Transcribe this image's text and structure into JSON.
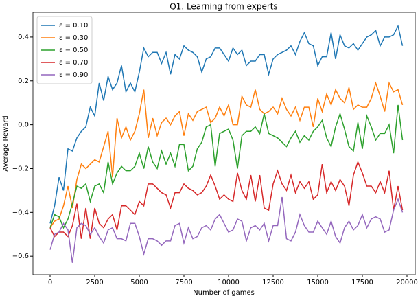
{
  "chart_data": {
    "type": "line",
    "title": "Q1. Learning from experts",
    "xlabel": "Number of games",
    "ylabel": "Average Reward",
    "x": [
      0,
      250,
      500,
      750,
      1000,
      1250,
      1500,
      1750,
      2000,
      2250,
      2500,
      2750,
      3000,
      3250,
      3500,
      3750,
      4000,
      4250,
      4500,
      4750,
      5000,
      5250,
      5500,
      5750,
      6000,
      6250,
      6500,
      6750,
      7000,
      7250,
      7500,
      7750,
      8000,
      8250,
      8500,
      8750,
      9000,
      9250,
      9500,
      9750,
      10000,
      10250,
      10500,
      10750,
      11000,
      11250,
      11500,
      11750,
      12000,
      12250,
      12500,
      12750,
      13000,
      13250,
      13500,
      13750,
      14000,
      14250,
      14500,
      14750,
      15000,
      15250,
      15500,
      15750,
      16000,
      16250,
      16500,
      16750,
      17000,
      17250,
      17500,
      17750,
      18000,
      18250,
      18500,
      18750,
      19000,
      19250,
      19500,
      19750
    ],
    "series": [
      {
        "name": "ε = 0.10",
        "color": "#1f77b4",
        "values": [
          -0.45,
          -0.37,
          -0.24,
          -0.3,
          -0.11,
          -0.12,
          -0.06,
          -0.03,
          -0.01,
          0.08,
          0.04,
          0.19,
          0.11,
          0.22,
          0.16,
          0.19,
          0.27,
          0.15,
          0.19,
          0.15,
          0.24,
          0.35,
          0.31,
          0.33,
          0.33,
          0.28,
          0.33,
          0.23,
          0.32,
          0.3,
          0.36,
          0.34,
          0.33,
          0.31,
          0.24,
          0.3,
          0.31,
          0.35,
          0.35,
          0.32,
          0.29,
          0.35,
          0.32,
          0.34,
          0.27,
          0.29,
          0.29,
          0.32,
          0.32,
          0.23,
          0.3,
          0.32,
          0.33,
          0.34,
          0.36,
          0.32,
          0.38,
          0.42,
          0.37,
          0.36,
          0.27,
          0.31,
          0.31,
          0.42,
          0.3,
          0.41,
          0.36,
          0.35,
          0.37,
          0.34,
          0.37,
          0.4,
          0.41,
          0.43,
          0.36,
          0.4,
          0.4,
          0.41,
          0.45,
          0.36
        ]
      },
      {
        "name": "ε = 0.30",
        "color": "#ff7f0e",
        "values": [
          -0.47,
          -0.44,
          -0.43,
          -0.37,
          -0.28,
          -0.38,
          -0.25,
          -0.18,
          -0.2,
          -0.18,
          -0.16,
          -0.17,
          -0.1,
          -0.03,
          -0.24,
          0.03,
          -0.06,
          -0.01,
          -0.07,
          -0.03,
          0.05,
          0.16,
          -0.06,
          0.03,
          -0.05,
          0.01,
          0.03,
          0.0,
          0.04,
          0.06,
          -0.05,
          0.05,
          0.02,
          0.06,
          0.07,
          0.08,
          0.01,
          0.03,
          0.08,
          0.04,
          0.09,
          0.0,
          0.0,
          0.13,
          0.09,
          0.08,
          0.16,
          0.07,
          0.05,
          0.06,
          0.08,
          0.05,
          0.12,
          0.07,
          0.04,
          0.08,
          0.02,
          0.08,
          0.08,
          -0.01,
          0.12,
          0.06,
          0.14,
          0.09,
          0.16,
          0.12,
          0.1,
          0.17,
          0.07,
          0.09,
          0.08,
          0.08,
          0.12,
          0.19,
          0.13,
          0.06,
          0.19,
          0.15,
          0.16,
          0.09
        ]
      },
      {
        "name": "ε = 0.50",
        "color": "#2ca02c",
        "values": [
          -0.47,
          -0.41,
          -0.42,
          -0.47,
          -0.43,
          -0.36,
          -0.28,
          -0.29,
          -0.27,
          -0.35,
          -0.28,
          -0.27,
          -0.31,
          -0.17,
          -0.27,
          -0.22,
          -0.19,
          -0.21,
          -0.21,
          -0.19,
          -0.13,
          -0.2,
          -0.1,
          -0.17,
          -0.2,
          -0.12,
          -0.18,
          -0.13,
          -0.19,
          -0.09,
          -0.09,
          -0.21,
          -0.19,
          -0.11,
          -0.08,
          -0.01,
          0.0,
          -0.19,
          -0.04,
          -0.03,
          -0.02,
          -0.07,
          -0.2,
          -0.05,
          -0.03,
          -0.03,
          -0.01,
          -0.04,
          0.05,
          -0.04,
          -0.05,
          -0.06,
          -0.08,
          -0.1,
          -0.06,
          -0.03,
          -0.08,
          -0.05,
          -0.07,
          -0.03,
          -0.01,
          0.02,
          -0.06,
          -0.1,
          -0.01,
          0.05,
          -0.02,
          -0.1,
          -0.12,
          0.01,
          -0.11,
          0.04,
          -0.01,
          -0.07,
          -0.04,
          -0.04,
          0.0,
          -0.13,
          0.09,
          -0.07
        ]
      },
      {
        "name": "ε = 0.70",
        "color": "#d62728",
        "values": [
          -0.47,
          -0.51,
          -0.49,
          -0.49,
          -0.51,
          -0.46,
          -0.36,
          -0.52,
          -0.38,
          -0.52,
          -0.38,
          -0.45,
          -0.47,
          -0.43,
          -0.41,
          -0.48,
          -0.37,
          -0.37,
          -0.39,
          -0.41,
          -0.35,
          -0.37,
          -0.27,
          -0.27,
          -0.29,
          -0.31,
          -0.32,
          -0.38,
          -0.31,
          -0.31,
          -0.27,
          -0.29,
          -0.3,
          -0.32,
          -0.31,
          -0.28,
          -0.23,
          -0.28,
          -0.34,
          -0.32,
          -0.34,
          -0.35,
          -0.22,
          -0.3,
          -0.34,
          -0.23,
          -0.35,
          -0.23,
          -0.38,
          -0.39,
          -0.27,
          -0.21,
          -0.27,
          -0.3,
          -0.23,
          -0.31,
          -0.26,
          -0.29,
          -0.26,
          -0.34,
          -0.32,
          -0.18,
          -0.31,
          -0.26,
          -0.3,
          -0.25,
          -0.28,
          -0.37,
          -0.23,
          -0.17,
          -0.22,
          -0.28,
          -0.28,
          -0.31,
          -0.26,
          -0.31,
          -0.21,
          -0.39,
          -0.28,
          -0.39
        ]
      },
      {
        "name": "ε = 0.90",
        "color": "#9467bd",
        "values": [
          -0.57,
          -0.5,
          -0.49,
          -0.45,
          -0.48,
          -0.63,
          -0.47,
          -0.45,
          -0.46,
          -0.5,
          -0.47,
          -0.51,
          -0.54,
          -0.48,
          -0.47,
          -0.52,
          -0.52,
          -0.53,
          -0.45,
          -0.45,
          -0.51,
          -0.59,
          -0.52,
          -0.52,
          -0.53,
          -0.55,
          -0.53,
          -0.53,
          -0.46,
          -0.45,
          -0.54,
          -0.47,
          -0.52,
          -0.51,
          -0.47,
          -0.46,
          -0.48,
          -0.43,
          -0.41,
          -0.45,
          -0.49,
          -0.48,
          -0.43,
          -0.44,
          -0.53,
          -0.47,
          -0.46,
          -0.48,
          -0.45,
          -0.53,
          -0.46,
          -0.46,
          -0.33,
          -0.52,
          -0.53,
          -0.49,
          -0.41,
          -0.46,
          -0.49,
          -0.49,
          -0.44,
          -0.47,
          -0.5,
          -0.44,
          -0.51,
          -0.54,
          -0.47,
          -0.44,
          -0.48,
          -0.46,
          -0.41,
          -0.47,
          -0.43,
          -0.42,
          -0.43,
          -0.49,
          -0.48,
          -0.39,
          -0.34,
          -0.4
        ]
      }
    ],
    "xlim": [
      -962,
      20462
    ],
    "ylim": [
      -0.684,
      0.5125
    ],
    "xticks": [
      0,
      2500,
      5000,
      7500,
      10000,
      12500,
      15000,
      17500,
      20000
    ],
    "yticks": [
      {
        "value": -0.6,
        "label": "−0.6"
      },
      {
        "value": -0.4,
        "label": "−0.4"
      },
      {
        "value": -0.2,
        "label": "−0.2"
      },
      {
        "value": 0,
        "label": "0.0"
      },
      {
        "value": 0.2,
        "label": "0.2"
      },
      {
        "value": 0.4,
        "label": "0.4"
      }
    ],
    "legend": "upper left"
  }
}
